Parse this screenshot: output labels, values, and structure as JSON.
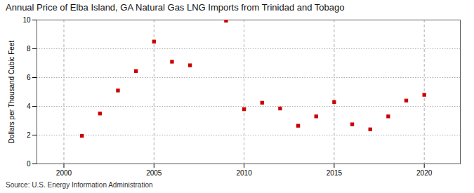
{
  "chart_data": {
    "type": "scatter",
    "title": "Annual Price of Elba Island, GA Natural Gas LNG Imports from Trinidad and Tobago",
    "ylabel": "Dollars per Thousand Cubic Feet",
    "source": "Source: U.S. Energy Information Administration",
    "x": [
      2001,
      2002,
      2003,
      2004,
      2005,
      2006,
      2007,
      2009,
      2010,
      2011,
      2012,
      2013,
      2014,
      2015,
      2016,
      2017,
      2018,
      2019,
      2020
    ],
    "values": [
      1.95,
      3.5,
      5.1,
      6.45,
      8.5,
      7.1,
      6.85,
      9.95,
      3.8,
      4.25,
      3.85,
      2.65,
      3.3,
      4.3,
      2.75,
      2.4,
      3.3,
      4.4,
      4.8
    ],
    "color": "#cc0000",
    "marker": "square",
    "xlim": [
      1998.5,
      2022
    ],
    "ylim": [
      0,
      10
    ],
    "xticks": [
      2000,
      2005,
      2010,
      2015,
      2020
    ],
    "yticks": [
      0,
      2,
      4,
      6,
      8,
      10
    ],
    "grid": true
  }
}
